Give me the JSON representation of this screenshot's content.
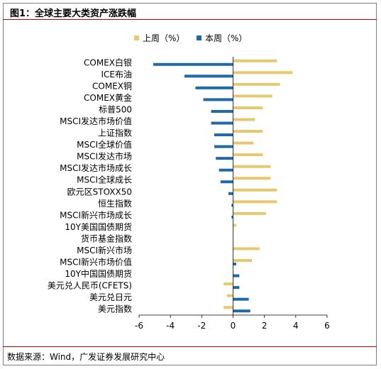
{
  "title": "图1：全球主要大类资产涨跌幅",
  "source": "数据来源：Wind，广发证券发展研究中心",
  "chart_data": {
    "type": "bar",
    "orientation": "horizontal",
    "categories": [
      "COMEX白银",
      "ICE布油",
      "COMEX铜",
      "COMEX黄金",
      "标普500",
      "MSCI发达市场价值",
      "上证指数",
      "MSCI全球价值",
      "MSCI发达市场",
      "MSCI发达市场成长",
      "MSCI全球成长",
      "欧元区STOXX50",
      "恒生指数",
      "MSCI新兴市场成长",
      "10Y美国国债期货",
      "货币基金指数",
      "MSCI新兴市场",
      "MSCI新兴市场价值",
      "10Y中国国债期货",
      "美元兑人民币(CFETS)",
      "美元兑日元",
      "美元指数"
    ],
    "series": [
      {
        "name": "上周（%）",
        "color": "#e6c86e",
        "values": [
          2.8,
          3.8,
          3.0,
          2.5,
          1.9,
          1.4,
          1.9,
          1.3,
          1.9,
          2.4,
          2.4,
          2.8,
          2.8,
          2.1,
          0.2,
          0.0,
          1.7,
          1.2,
          0.0,
          -0.6,
          -0.4,
          -0.6
        ]
      },
      {
        "name": "本周（%）",
        "color": "#1f6aa5",
        "values": [
          -5.1,
          -3.1,
          -2.4,
          -1.9,
          -1.4,
          -1.4,
          -1.2,
          -1.2,
          -1.1,
          -0.9,
          -0.8,
          -0.3,
          -0.1,
          -0.1,
          0.0,
          0.0,
          0.0,
          0.2,
          0.4,
          0.4,
          1.0,
          1.1
        ]
      }
    ],
    "xlim": [
      -6,
      6
    ],
    "xticks": [
      -6,
      -4,
      -2,
      0,
      2,
      4,
      6
    ],
    "legend_position": "top-center",
    "grid": false
  }
}
